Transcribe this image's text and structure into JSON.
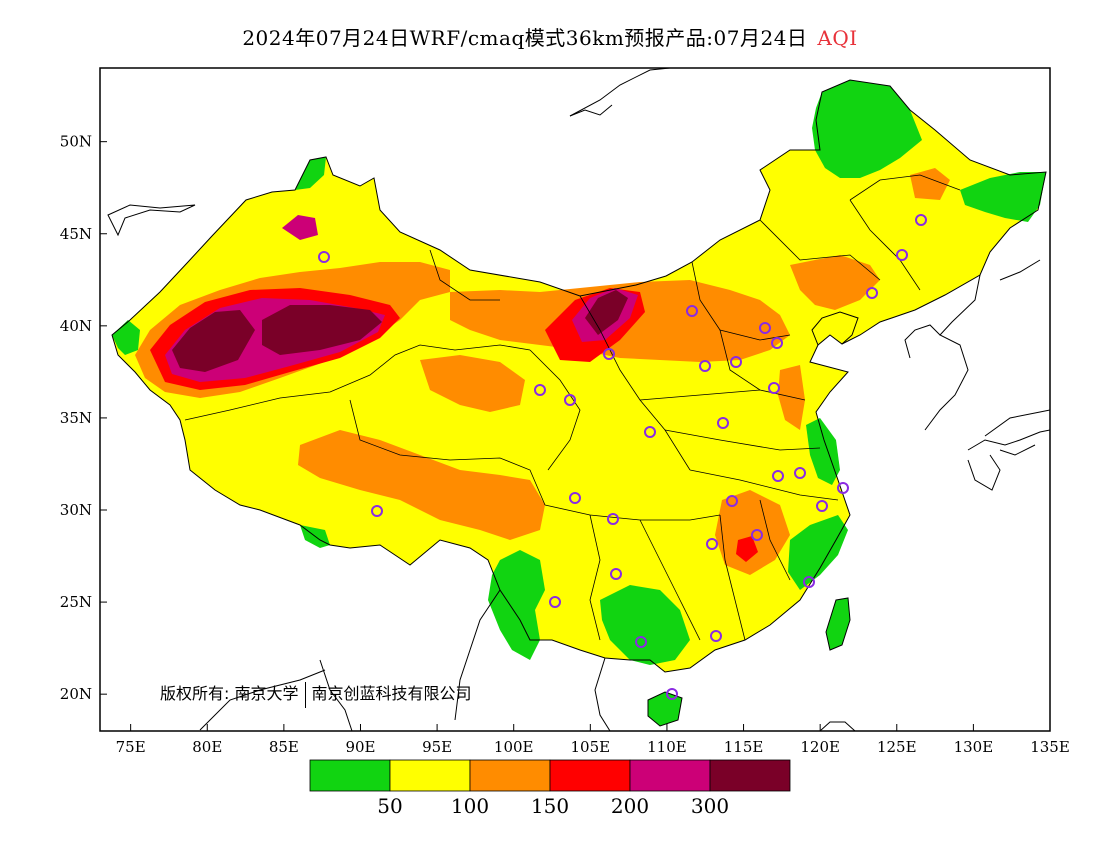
{
  "title": {
    "main": "2024年07月24日WRF/cmaq模式36km预报产品:07月24日",
    "pollutant": "AQI"
  },
  "copyright": {
    "prefix": "版权所有:",
    "org1": "南京大学",
    "org2": "南京创蓝科技有限公司"
  },
  "map": {
    "lon_range": [
      73,
      135
    ],
    "lat_range": [
      18,
      54
    ],
    "lon_ticks": [
      "75E",
      "80E",
      "85E",
      "90E",
      "95E",
      "100E",
      "105E",
      "110E",
      "115E",
      "120E",
      "125E",
      "130E",
      "135E"
    ],
    "lat_ticks": [
      "20N",
      "25N",
      "30N",
      "35N",
      "40N",
      "45N",
      "50N"
    ]
  },
  "legend": {
    "colors": [
      "#11d411",
      "#ffff00",
      "#ff8c00",
      "#ff0000",
      "#cc0077",
      "#7a0028"
    ],
    "labels": [
      "50",
      "100",
      "150",
      "200",
      "300"
    ]
  },
  "colors": {
    "good": "#11d411",
    "moderate": "#ffff00",
    "usg": "#ff8c00",
    "unhealthy": "#ff0000",
    "very_unhealthy": "#cc0077",
    "hazardous": "#7a0028",
    "station_marker": "#8a2be2"
  }
}
